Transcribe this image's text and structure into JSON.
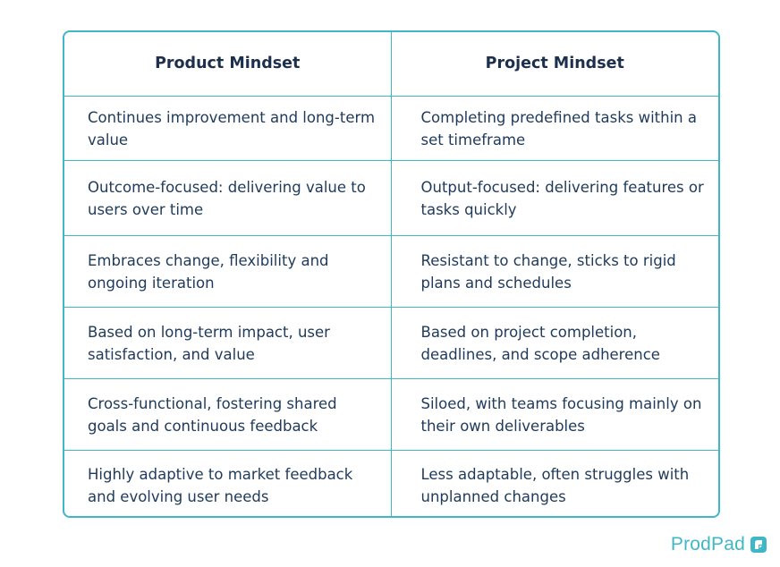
{
  "table": {
    "headers": [
      "Product Mindset",
      "Project Mindset"
    ],
    "rows": [
      [
        "Continues improvement and long-term value",
        "Completing predefined tasks within a set timeframe"
      ],
      [
        "Outcome-focused: delivering value to users over time",
        "Output-focused: delivering features or tasks quickly"
      ],
      [
        "Embraces change, flexibility and ongoing iteration",
        "Resistant to change, sticks to rigid plans and schedules"
      ],
      [
        "Based on long-term impact, user satisfaction, and value",
        "Based on project completion, deadlines, and scope adherence"
      ],
      [
        "Cross-functional, fostering shared goals and continuous feedback",
        "Siloed, with teams focusing mainly on their own deliverables"
      ],
      [
        "Highly adaptive to market feedback and evolving user needs",
        "Less adaptable, often struggles with unplanned changes"
      ]
    ]
  },
  "brand": {
    "name": "ProdPad",
    "icon": "prodpad-logo-icon",
    "accent_color": "#3fb7c7",
    "text_color": "#1f3a5a"
  }
}
